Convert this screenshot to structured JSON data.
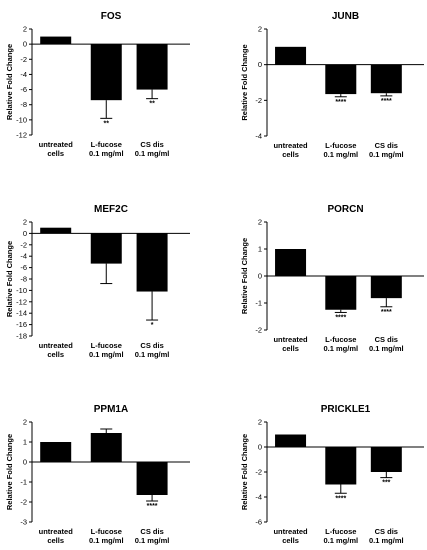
{
  "chart_data": [
    {
      "type": "bar",
      "title": "FOS",
      "ylabel": "Relative Fold Change",
      "ylim": [
        -12,
        2
      ],
      "yticks": [
        -12,
        -10,
        -8,
        -6,
        -4,
        -2,
        0,
        2
      ],
      "categories": [
        [
          "untreated",
          "cells"
        ],
        [
          "L-fucose",
          "0.1 mg/ml"
        ],
        [
          "CS dis",
          "0.1 mg/ml"
        ]
      ],
      "values": [
        1,
        -7.4,
        -6.0
      ],
      "errors": [
        0,
        2.4,
        1.2
      ],
      "significance": [
        "",
        "**",
        "**"
      ]
    },
    {
      "type": "bar",
      "title": "JUNB",
      "ylabel": "Relative Fold Change",
      "ylim": [
        -4,
        2
      ],
      "yticks": [
        -4,
        -2,
        0,
        2
      ],
      "categories": [
        [
          "untreated",
          "cells"
        ],
        [
          "L-fucose",
          "0.1 mg/ml"
        ],
        [
          "CS dis",
          "0.1 mg/ml"
        ]
      ],
      "values": [
        1,
        -1.65,
        -1.6
      ],
      "errors": [
        0,
        0.15,
        0.15
      ],
      "significance": [
        "",
        "****",
        "****"
      ]
    },
    {
      "type": "bar",
      "title": "MEF2C",
      "ylabel": "Relative Fold Change",
      "ylim": [
        -18,
        2
      ],
      "yticks": [
        -18,
        -16,
        -14,
        -12,
        -10,
        -8,
        -6,
        -4,
        -2,
        0,
        2
      ],
      "categories": [
        [
          "untreated",
          "cells"
        ],
        [
          "L-fucose",
          "0.1 mg/ml"
        ],
        [
          "CS dis",
          "0.1 mg/ml"
        ]
      ],
      "values": [
        1,
        -5.3,
        -10.2
      ],
      "errors": [
        0,
        3.5,
        5.0
      ],
      "significance": [
        "",
        "",
        "*"
      ]
    },
    {
      "type": "bar",
      "title": "PORCN",
      "ylabel": "Relative Fold Change",
      "ylim": [
        -2,
        2
      ],
      "yticks": [
        -2,
        -1,
        0,
        1,
        2
      ],
      "categories": [
        [
          "untreated",
          "cells"
        ],
        [
          "L-fucose",
          "0.1 mg/ml"
        ],
        [
          "CS dis",
          "0.1 mg/ml"
        ]
      ],
      "values": [
        1,
        -1.25,
        -0.82
      ],
      "errors": [
        0,
        0.1,
        0.32
      ],
      "significance": [
        "",
        "****",
        "****"
      ]
    },
    {
      "type": "bar",
      "title": "PPM1A",
      "ylabel": "Relative Fold Change",
      "ylim": [
        -3,
        2
      ],
      "yticks": [
        -3,
        -2,
        -1,
        0,
        1,
        2
      ],
      "categories": [
        [
          "untreated",
          "cells"
        ],
        [
          "L-fucose",
          "0.1 mg/ml"
        ],
        [
          "CS dis",
          "0.1 mg/ml"
        ]
      ],
      "values": [
        1,
        1.45,
        -1.65
      ],
      "errors": [
        0,
        0.2,
        0.3
      ],
      "significance": [
        "",
        "",
        "****"
      ]
    },
    {
      "type": "bar",
      "title": "PRICKLE1",
      "ylabel": "Relative Fold Change",
      "ylim": [
        -6,
        2
      ],
      "yticks": [
        -6,
        -4,
        -2,
        0,
        2
      ],
      "categories": [
        [
          "untreated",
          "cells"
        ],
        [
          "L-fucose",
          "0.1 mg/ml"
        ],
        [
          "CS dis",
          "0.1 mg/ml"
        ]
      ],
      "values": [
        1,
        -3.0,
        -2.0
      ],
      "errors": [
        0,
        0.7,
        0.45
      ],
      "significance": [
        "",
        "****",
        "***"
      ]
    }
  ]
}
